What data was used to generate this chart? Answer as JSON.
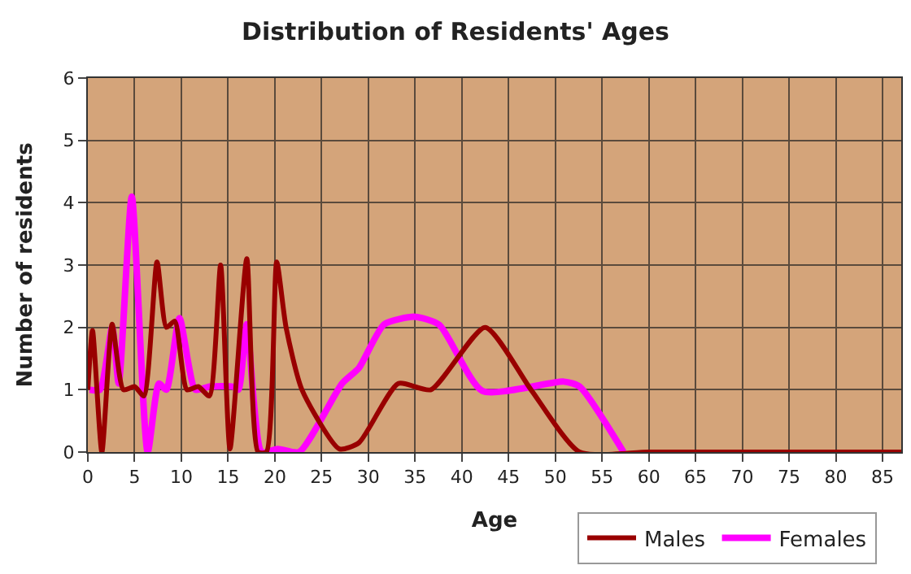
{
  "chart_data": {
    "type": "line",
    "title": "Distribution of Residents' Ages",
    "xlabel": "Age",
    "ylabel": "Number of residents",
    "xlim": [
      0,
      87
    ],
    "xticks": [
      0,
      5,
      10,
      15,
      20,
      25,
      30,
      35,
      40,
      45,
      50,
      55,
      60,
      65,
      70,
      75,
      80,
      85
    ],
    "ylim": [
      0,
      6
    ],
    "yticks": [
      0,
      1,
      2,
      3,
      4,
      5,
      6
    ],
    "grid": true,
    "legend": "bottom",
    "marker": "none",
    "line_style": "solid",
    "series": [
      {
        "name": "Males",
        "color": "#990000",
        "x": [
          0,
          0.5,
          1.5,
          2.6,
          3.8,
          5,
          6,
          7.4,
          8.4,
          9.3,
          10.6,
          11.8,
          13,
          14.2,
          15.2,
          17,
          18.2,
          19.1,
          20.2,
          21.2,
          22.9,
          26.9,
          29,
          33.2,
          36.7,
          42.5,
          47.4,
          52.6,
          60,
          70,
          80,
          87
        ],
        "values": [
          1,
          1.95,
          0,
          2.05,
          1,
          1.05,
          0.9,
          3.05,
          2,
          2.1,
          1,
          1.05,
          0.9,
          3,
          0.05,
          3.1,
          0,
          0,
          3.05,
          2,
          1,
          0.05,
          0.15,
          1.1,
          1,
          2,
          1,
          0,
          0,
          0,
          0,
          0
        ]
      },
      {
        "name": "Females",
        "color": "#ff00ff",
        "x": [
          0.2,
          1.3,
          2.6,
          3.3,
          4.7,
          6.4,
          7.6,
          8.4,
          9.8,
          11.5,
          13,
          15.5,
          16.1,
          17,
          18.6,
          20.3,
          22.6,
          27.2,
          29,
          31.7,
          35,
          37.6,
          42.2,
          50.9,
          52.6,
          57.3
        ],
        "values": [
          1,
          1,
          2,
          1.1,
          4.1,
          0,
          1.1,
          1,
          2.15,
          1,
          1.05,
          1.05,
          1,
          2.05,
          0,
          0.05,
          0,
          1.1,
          1.35,
          2.05,
          2.17,
          2.04,
          0.98,
          1.13,
          1.05,
          0
        ]
      }
    ]
  }
}
